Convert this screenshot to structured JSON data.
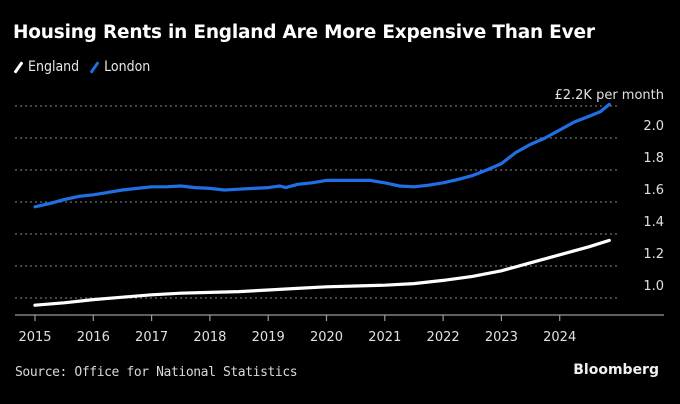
{
  "chart_data": {
    "type": "line",
    "title": "Housing Rents in England Are More Expensive Than Ever",
    "xlabel": "",
    "ylabel": "",
    "unit_annotation": "£2.2K per month",
    "source": "Source: Office for National Statistics",
    "brand": "Bloomberg",
    "x_ticks": [
      "2015",
      "2016",
      "2017",
      "2018",
      "2019",
      "2020",
      "2021",
      "2022",
      "2023",
      "2024"
    ],
    "y_ticks": [
      {
        "value": 0.8,
        "label": ""
      },
      {
        "value": 1.0,
        "label": "1.0"
      },
      {
        "value": 1.2,
        "label": "1.2"
      },
      {
        "value": 1.4,
        "label": "1.4"
      },
      {
        "value": 1.6,
        "label": "1.6"
      },
      {
        "value": 1.8,
        "label": "1.8"
      },
      {
        "value": 2.0,
        "label": "2.0"
      }
    ],
    "xlim": [
      2015,
      2025.6
    ],
    "ylim": [
      0.72,
      2.12
    ],
    "grid": true,
    "legend_position": "top-left",
    "series": [
      {
        "name": "England",
        "color": "#ffffff",
        "x": [
          2015.0,
          2015.5,
          2016.0,
          2016.5,
          2017.0,
          2017.5,
          2018.0,
          2018.5,
          2019.0,
          2019.5,
          2020.0,
          2020.5,
          2021.0,
          2021.5,
          2022.0,
          2022.5,
          2023.0,
          2023.5,
          2024.0,
          2024.5,
          2024.85
        ],
        "values": [
          0.755,
          0.77,
          0.79,
          0.805,
          0.82,
          0.83,
          0.835,
          0.84,
          0.85,
          0.86,
          0.87,
          0.875,
          0.88,
          0.89,
          0.91,
          0.935,
          0.97,
          1.02,
          1.07,
          1.12,
          1.16
        ]
      },
      {
        "name": "London",
        "color": "#1f6fe5",
        "x": [
          2015.0,
          2015.25,
          2015.5,
          2015.75,
          2016.0,
          2016.25,
          2016.5,
          2016.75,
          2017.0,
          2017.25,
          2017.5,
          2017.75,
          2018.0,
          2018.25,
          2018.5,
          2018.75,
          2019.0,
          2019.2,
          2019.3,
          2019.5,
          2019.75,
          2020.0,
          2020.25,
          2020.5,
          2020.75,
          2021.0,
          2021.25,
          2021.5,
          2021.75,
          2022.0,
          2022.25,
          2022.5,
          2022.75,
          2023.0,
          2023.25,
          2023.5,
          2023.75,
          2024.0,
          2024.25,
          2024.5,
          2024.7,
          2024.85
        ],
        "values": [
          1.37,
          1.39,
          1.415,
          1.435,
          1.445,
          1.46,
          1.475,
          1.485,
          1.495,
          1.495,
          1.5,
          1.49,
          1.485,
          1.475,
          1.48,
          1.485,
          1.49,
          1.5,
          1.49,
          1.51,
          1.52,
          1.535,
          1.535,
          1.535,
          1.535,
          1.52,
          1.5,
          1.495,
          1.505,
          1.52,
          1.54,
          1.565,
          1.6,
          1.64,
          1.71,
          1.76,
          1.8,
          1.85,
          1.9,
          1.935,
          1.965,
          2.01
        ]
      }
    ]
  }
}
